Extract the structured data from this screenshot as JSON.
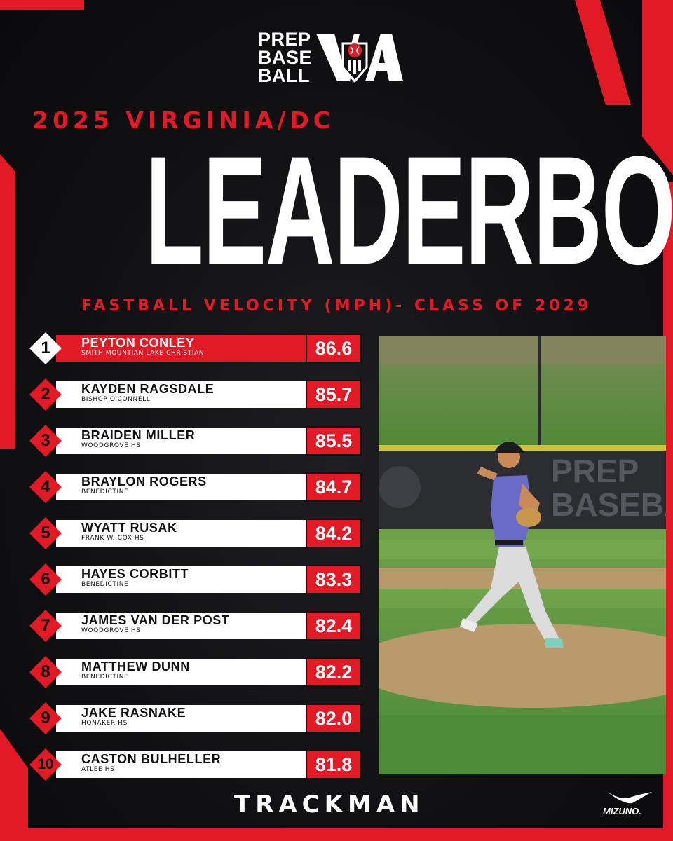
{
  "logo": {
    "line1": "PREP",
    "line2": "BASE",
    "line3": "BALL",
    "state": "VA"
  },
  "sup_title": "2025 VIRGINIA/DC",
  "main_title": "LEADERBOARD",
  "sub_title": "FASTBALL VELOCITY (MPH)- CLASS OF 2029",
  "rows": [
    {
      "rank": "1",
      "name": "PEYTON CONLEY",
      "school": "SMITH MOUNTIAN LAKE CHRISTIAN",
      "velo": "86.6"
    },
    {
      "rank": "2",
      "name": "KAYDEN RAGSDALE",
      "school": "BISHOP O'CONNELL",
      "velo": "85.7"
    },
    {
      "rank": "3",
      "name": "BRAIDEN MILLER",
      "school": "WOODGROVE HS",
      "velo": "85.5"
    },
    {
      "rank": "4",
      "name": "BRAYLON ROGERS",
      "school": "BENEDICTINE",
      "velo": "84.7"
    },
    {
      "rank": "5",
      "name": "WYATT RUSAK",
      "school": "FRANK W. COX HS",
      "velo": "84.2"
    },
    {
      "rank": "6",
      "name": "HAYES CORBITT",
      "school": "BENEDICTINE",
      "velo": "83.3"
    },
    {
      "rank": "7",
      "name": "JAMES VAN DER POST",
      "school": "WOODGROVE  HS",
      "velo": "82.4"
    },
    {
      "rank": "8",
      "name": "MATTHEW DUNN",
      "school": "BENEDICTINE",
      "velo": "82.2"
    },
    {
      "rank": "9",
      "name": "JAKE RASNAKE",
      "school": "HONAKER HS",
      "velo": "82.0"
    },
    {
      "rank": "10",
      "name": "CASTON BULHELLER",
      "school": "ATLEE HS",
      "velo": "81.8"
    }
  ],
  "photo_wall_text": {
    "line1": "PREP",
    "line2": "BASEBA"
  },
  "sponsor": "TRACKMAN",
  "sponsor2": "MIZUNO.",
  "colors": {
    "accent_red": "#e21a26",
    "background": "#111114",
    "bar_white": "#ffffff"
  }
}
